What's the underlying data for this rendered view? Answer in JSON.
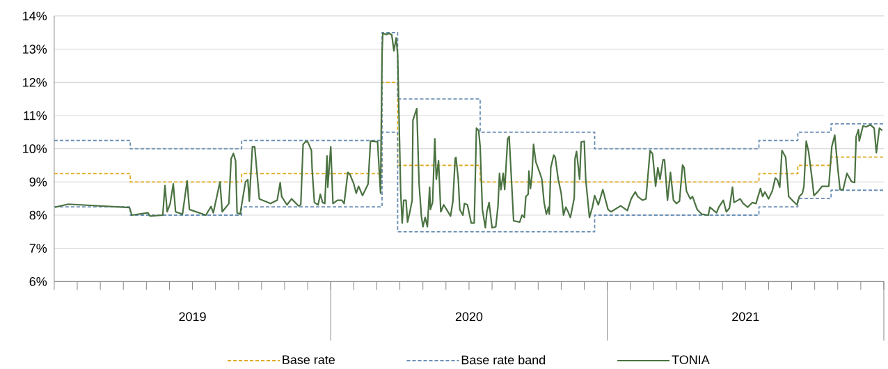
{
  "chart_data": {
    "type": "line",
    "xlim": [
      "2019-01-01",
      "2022-01-01"
    ],
    "ylim": [
      6,
      14
    ],
    "yticks": [
      {
        "value": 6,
        "label": "6%"
      },
      {
        "value": 7,
        "label": "7%"
      },
      {
        "value": 8,
        "label": "8%"
      },
      {
        "value": 9,
        "label": "9%"
      },
      {
        "value": 10,
        "label": "10%"
      },
      {
        "value": 11,
        "label": "11%"
      },
      {
        "value": 12,
        "label": "12%"
      },
      {
        "value": 13,
        "label": "13%"
      },
      {
        "value": 14,
        "label": "14%"
      }
    ],
    "xticks": [
      {
        "value": "2019-01-01",
        "label": null
      },
      {
        "value": "2019-02-01",
        "label": null
      },
      {
        "value": "2019-03-01",
        "label": null
      },
      {
        "value": "2019-04-01",
        "label": null
      },
      {
        "value": "2019-05-01",
        "label": null
      },
      {
        "value": "2019-06-01",
        "label": null
      },
      {
        "value": "2019-07-01",
        "label": "2019"
      },
      {
        "value": "2019-08-01",
        "label": null
      },
      {
        "value": "2019-09-01",
        "label": null
      },
      {
        "value": "2019-10-01",
        "label": null
      },
      {
        "value": "2019-11-01",
        "label": null
      },
      {
        "value": "2019-12-01",
        "label": null
      },
      {
        "value": "2020-01-01",
        "label": null
      },
      {
        "value": "2020-02-01",
        "label": null
      },
      {
        "value": "2020-03-01",
        "label": null
      },
      {
        "value": "2020-04-01",
        "label": null
      },
      {
        "value": "2020-05-01",
        "label": null
      },
      {
        "value": "2020-06-01",
        "label": null
      },
      {
        "value": "2020-07-01",
        "label": "2020"
      },
      {
        "value": "2020-08-01",
        "label": null
      },
      {
        "value": "2020-09-01",
        "label": null
      },
      {
        "value": "2020-10-01",
        "label": null
      },
      {
        "value": "2020-11-01",
        "label": null
      },
      {
        "value": "2020-12-01",
        "label": null
      },
      {
        "value": "2021-01-01",
        "label": null
      },
      {
        "value": "2021-02-01",
        "label": null
      },
      {
        "value": "2021-03-01",
        "label": null
      },
      {
        "value": "2021-04-01",
        "label": null
      },
      {
        "value": "2021-05-01",
        "label": null
      },
      {
        "value": "2021-06-01",
        "label": null
      },
      {
        "value": "2021-07-01",
        "label": "2021"
      },
      {
        "value": "2021-08-01",
        "label": null
      },
      {
        "value": "2021-09-01",
        "label": null
      },
      {
        "value": "2021-10-01",
        "label": null
      },
      {
        "value": "2021-11-01",
        "label": null
      },
      {
        "value": "2021-12-01",
        "label": null
      },
      {
        "value": "2022-01-01",
        "label": null
      }
    ],
    "grid": "y",
    "legend": "bottom",
    "series": [
      {
        "name": "Base rate",
        "type": "step",
        "line_style": "dashed",
        "color": "#dfaa1f",
        "x": [
          "2019-01-01",
          "2019-04-10",
          "2019-09-05",
          "2020-03-08",
          "2020-03-29",
          "2020-07-16",
          "2021-07-19",
          "2021-09-09",
          "2021-10-23",
          "2021-12-31"
        ],
        "values": [
          9.25,
          9.0,
          9.25,
          12.0,
          9.5,
          9.0,
          9.25,
          9.5,
          9.75,
          9.75
        ]
      },
      {
        "name": "Base rate band",
        "type": "step",
        "line_style": "dashed",
        "color": "#6a8fb5",
        "x": [
          "2019-01-01",
          "2019-04-10",
          "2019-09-05",
          "2020-03-08",
          "2020-03-29",
          "2020-07-16",
          "2020-12-15",
          "2021-07-19",
          "2021-09-09",
          "2021-10-23",
          "2021-12-31"
        ],
        "values": [
          10.25,
          10.0,
          10.25,
          13.5,
          11.5,
          10.5,
          10.0,
          10.25,
          10.5,
          10.75,
          10.75
        ]
      },
      {
        "type": "step",
        "line_style": "dashed",
        "color": "#6a8fb5",
        "x": [
          "2019-01-01",
          "2019-04-10",
          "2019-09-05",
          "2020-03-08",
          "2020-03-29",
          "2020-12-15",
          "2021-07-19",
          "2021-09-09",
          "2021-10-23",
          "2021-12-31"
        ],
        "values": [
          8.25,
          8.0,
          8.25,
          10.5,
          7.5,
          8.0,
          8.25,
          8.5,
          8.75,
          8.75
        ]
      },
      {
        "name": "TONIA",
        "type": "line",
        "line_style": "solid",
        "color": "#4a7241",
        "x": [
          "2019-01-02",
          "2019-01-20",
          "2019-04-09",
          "2019-04-12",
          "2019-05-03",
          "2019-05-06",
          "2019-05-23",
          "2019-05-26",
          "2019-05-29",
          "2019-06-02",
          "2019-06-06",
          "2019-06-09",
          "2019-06-18",
          "2019-06-24",
          "2019-06-27",
          "2019-07-19",
          "2019-07-26",
          "2019-07-29",
          "2019-08-07",
          "2019-08-10",
          "2019-08-19",
          "2019-08-22",
          "2019-08-25",
          "2019-08-28",
          "2019-08-30",
          "2019-09-03",
          "2019-09-10",
          "2019-09-13",
          "2019-09-15",
          "2019-09-19",
          "2019-09-22",
          "2019-09-28",
          "2019-10-13",
          "2019-10-22",
          "2019-10-26",
          "2019-10-28",
          "2019-11-04",
          "2019-11-10",
          "2019-11-19",
          "2019-11-22",
          "2019-11-25",
          "2019-11-28",
          "2019-12-01",
          "2019-12-06",
          "2019-12-07",
          "2019-12-10",
          "2019-12-15",
          "2019-12-18",
          "2019-12-21",
          "2019-12-24",
          "2019-12-27",
          "2019-12-28",
          "2020-01-01",
          "2020-01-04",
          "2020-01-10",
          "2020-01-16",
          "2020-01-19",
          "2020-01-24",
          "2020-01-27",
          "2020-02-01",
          "2020-02-04",
          "2020-02-07",
          "2020-02-12",
          "2020-02-19",
          "2020-02-22",
          "2020-03-02",
          "2020-03-06",
          "2020-03-08",
          "2020-03-09",
          "2020-03-14",
          "2020-03-17",
          "2020-03-21",
          "2020-03-24",
          "2020-03-27",
          "2020-03-29",
          "2020-04-02",
          "2020-04-04",
          "2020-04-06",
          "2020-04-09",
          "2020-04-11",
          "2020-04-14",
          "2020-04-17",
          "2020-04-18",
          "2020-04-23",
          "2020-04-26",
          "2020-04-29",
          "2020-05-01",
          "2020-05-04",
          "2020-05-07",
          "2020-05-10",
          "2020-05-11",
          "2020-05-14",
          "2020-05-17",
          "2020-05-19",
          "2020-05-22",
          "2020-05-25",
          "2020-05-29",
          "2020-06-07",
          "2020-06-10",
          "2020-06-13",
          "2020-06-14",
          "2020-06-17",
          "2020-06-19",
          "2020-06-23",
          "2020-06-25",
          "2020-06-29",
          "2020-07-04",
          "2020-07-08",
          "2020-07-11",
          "2020-07-14",
          "2020-07-16",
          "2020-07-19",
          "2020-07-23",
          "2020-07-25",
          "2020-07-28",
          "2020-08-01",
          "2020-08-06",
          "2020-08-09",
          "2020-08-11",
          "2020-08-13",
          "2020-08-16",
          "2020-08-18",
          "2020-08-22",
          "2020-08-24",
          "2020-08-30",
          "2020-09-07",
          "2020-09-10",
          "2020-09-13",
          "2020-09-15",
          "2020-09-18",
          "2020-09-19",
          "2020-09-21",
          "2020-09-23",
          "2020-09-25",
          "2020-09-28",
          "2020-10-03",
          "2020-10-06",
          "2020-10-09",
          "2020-10-12",
          "2020-10-15",
          "2020-10-16",
          "2020-10-18",
          "2020-10-22",
          "2020-10-24",
          "2020-10-28",
          "2020-11-01",
          "2020-11-04",
          "2020-11-07",
          "2020-11-10",
          "2020-11-13",
          "2020-11-18",
          "2020-11-19",
          "2020-11-21",
          "2020-11-25",
          "2020-11-27",
          "2020-12-01",
          "2020-12-03",
          "2020-12-08",
          "2020-12-12",
          "2020-12-15",
          "2020-12-20",
          "2020-12-26",
          "2021-01-02",
          "2021-01-06",
          "2021-01-19",
          "2021-01-28",
          "2021-02-02",
          "2021-02-07",
          "2021-02-10",
          "2021-02-16",
          "2021-02-20",
          "2021-02-25",
          "2021-02-28",
          "2021-03-04",
          "2021-03-07",
          "2021-03-10",
          "2021-03-14",
          "2021-03-16",
          "2021-03-20",
          "2021-03-24",
          "2021-03-28",
          "2021-04-01",
          "2021-04-05",
          "2021-04-09",
          "2021-04-11",
          "2021-04-14",
          "2021-04-19",
          "2021-04-22",
          "2021-04-28",
          "2021-05-04",
          "2021-05-13",
          "2021-05-15",
          "2021-05-24",
          "2021-05-27",
          "2021-06-02",
          "2021-06-06",
          "2021-06-10",
          "2021-06-14",
          "2021-06-16",
          "2021-06-24",
          "2021-06-28",
          "2021-07-04",
          "2021-07-10",
          "2021-07-15",
          "2021-07-21",
          "2021-07-24",
          "2021-07-27",
          "2021-08-01",
          "2021-08-06",
          "2021-08-10",
          "2021-08-13",
          "2021-08-16",
          "2021-08-19",
          "2021-08-24",
          "2021-08-28",
          "2021-09-03",
          "2021-09-08",
          "2021-09-11",
          "2021-09-15",
          "2021-09-17",
          "2021-09-20",
          "2021-09-23",
          "2021-09-28",
          "2021-09-30",
          "2021-10-05",
          "2021-10-11",
          "2021-10-15",
          "2021-10-20",
          "2021-10-24",
          "2021-10-28",
          "2021-11-01",
          "2021-11-04",
          "2021-11-08",
          "2021-11-13",
          "2021-11-19",
          "2021-11-23",
          "2021-11-25",
          "2021-11-28",
          "2021-11-29",
          "2021-12-04",
          "2021-12-08",
          "2021-12-14",
          "2021-12-19",
          "2021-12-22",
          "2021-12-26",
          "2021-12-30"
        ],
        "values": [
          8.24,
          8.33,
          8.23,
          8.0,
          8.07,
          7.97,
          8.0,
          8.89,
          8.1,
          8.35,
          8.94,
          8.1,
          8.03,
          9.03,
          8.17,
          8.0,
          8.26,
          8.07,
          9.0,
          8.1,
          8.35,
          9.7,
          9.86,
          9.64,
          8.07,
          8.03,
          9.0,
          9.07,
          8.42,
          10.06,
          10.06,
          8.49,
          8.35,
          8.45,
          8.98,
          8.56,
          8.31,
          8.49,
          8.28,
          8.31,
          10.13,
          10.21,
          10.21,
          9.95,
          9.36,
          8.38,
          8.31,
          8.63,
          8.38,
          8.35,
          9.78,
          8.84,
          10.06,
          8.35,
          8.45,
          8.45,
          8.35,
          9.29,
          9.22,
          8.94,
          8.66,
          8.87,
          8.59,
          8.94,
          10.23,
          10.21,
          8.66,
          12.85,
          13.48,
          13.44,
          13.48,
          13.44,
          12.95,
          13.34,
          12.85,
          8.73,
          7.76,
          8.45,
          8.45,
          7.79,
          8.1,
          8.45,
          10.86,
          11.21,
          8.94,
          7.97,
          7.65,
          7.93,
          7.65,
          8.84,
          8.17,
          8.38,
          10.3,
          9.08,
          9.64,
          8.1,
          8.31,
          7.97,
          8.42,
          9.71,
          9.74,
          9.08,
          8.17,
          8.0,
          8.35,
          8.31,
          7.76,
          7.76,
          10.62,
          10.55,
          10.06,
          8.17,
          7.62,
          8.1,
          8.38,
          7.62,
          7.65,
          8.28,
          9.26,
          8.77,
          9.26,
          8.77,
          10.3,
          10.37,
          7.83,
          7.79,
          8.0,
          7.93,
          8.56,
          8.63,
          9.33,
          8.8,
          9.22,
          10.13,
          9.6,
          9.29,
          9.08,
          8.38,
          8.03,
          8.24,
          8.03,
          9.43,
          9.81,
          9.74,
          9.08,
          8.66,
          8.0,
          8.24,
          8.1,
          7.93,
          8.52,
          9.71,
          9.92,
          9.08,
          10.2,
          10.23,
          9.08,
          7.93,
          8.24,
          8.59,
          8.31,
          8.77,
          8.17,
          8.1,
          8.28,
          8.14,
          8.49,
          8.7,
          8.56,
          8.45,
          8.49,
          9.95,
          9.85,
          8.87,
          9.43,
          9.08,
          9.67,
          9.67,
          8.45,
          9.29,
          8.45,
          8.35,
          8.42,
          9.51,
          9.43,
          8.73,
          8.49,
          8.56,
          8.17,
          8.03,
          8.0,
          8.24,
          8.07,
          8.24,
          8.45,
          8.1,
          8.21,
          8.84,
          8.38,
          8.49,
          8.35,
          8.24,
          8.38,
          8.35,
          8.8,
          8.56,
          8.7,
          8.49,
          8.73,
          9.12,
          9.05,
          8.84,
          9.95,
          9.74,
          8.56,
          8.42,
          8.31,
          8.56,
          8.66,
          8.87,
          10.23,
          9.92,
          9.01,
          8.59,
          8.7,
          8.87,
          8.87,
          8.87,
          10.06,
          10.41,
          9.43,
          8.77,
          8.77,
          9.26,
          9.01,
          8.98,
          10.37,
          10.58,
          10.23,
          10.69,
          10.66,
          10.72,
          10.62,
          9.88,
          10.62,
          10.55
        ]
      }
    ]
  }
}
